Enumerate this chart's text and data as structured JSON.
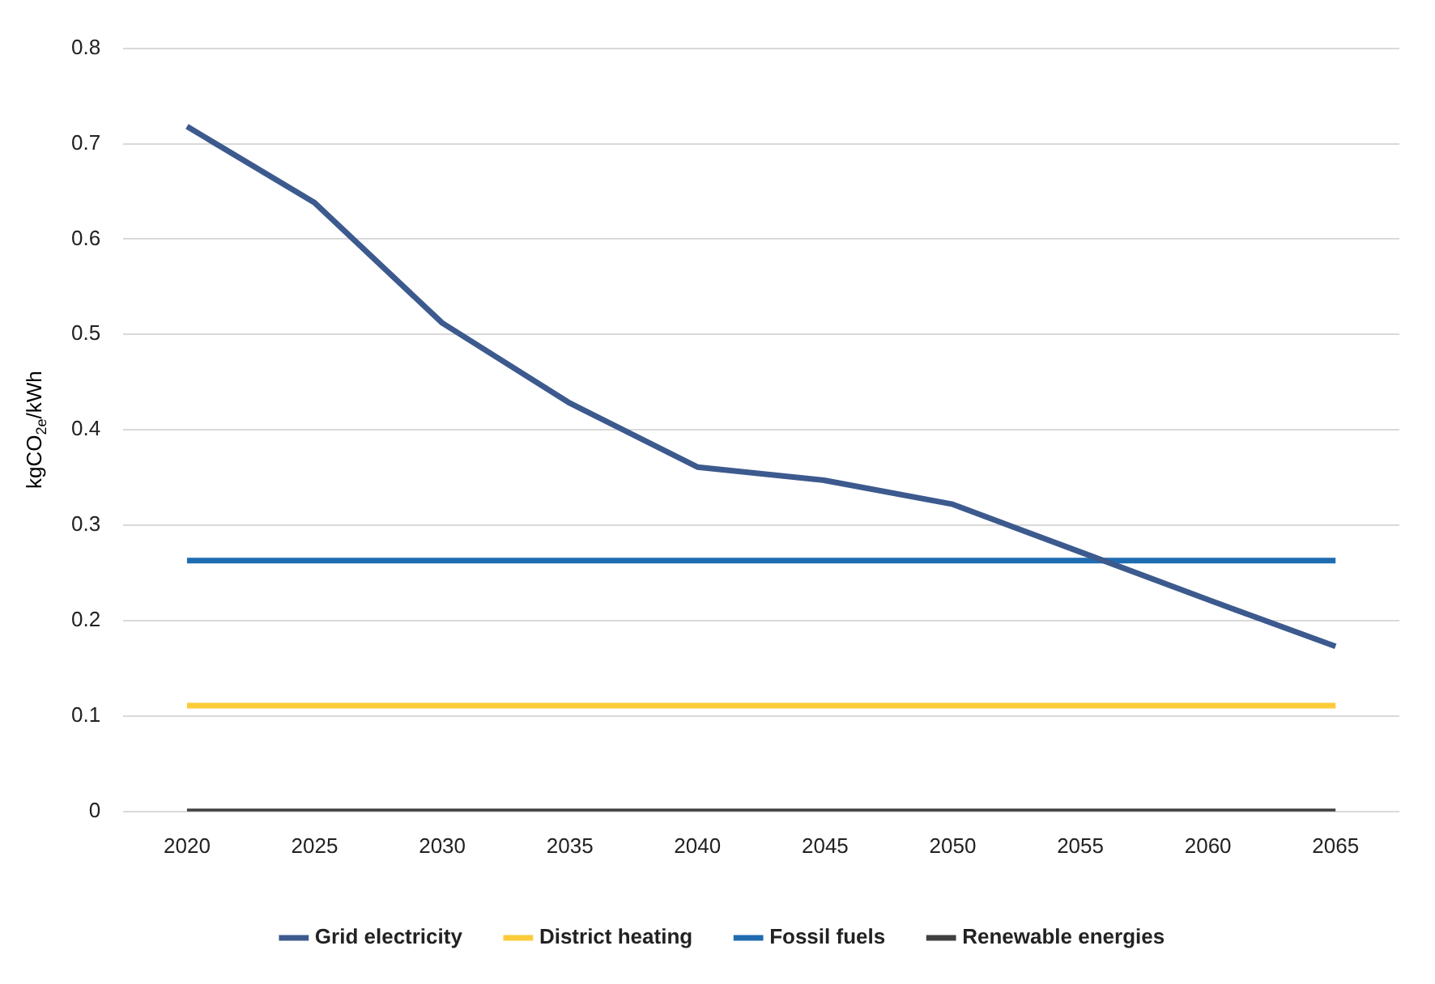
{
  "chart_data": {
    "type": "line",
    "ylabel": "kgCO$_{2e}$/kWh",
    "categories": [
      "2020",
      "2025",
      "2030",
      "2035",
      "2040",
      "2045",
      "2050",
      "2055",
      "2060",
      "2065"
    ],
    "series": [
      {
        "name": "Grid electricity",
        "color": "#3c5a8e",
        "values": [
          0.718,
          0.638,
          0.512,
          0.428,
          0.361,
          0.347,
          0.322,
          0.272,
          0.222,
          0.173
        ]
      },
      {
        "name": "District heating",
        "color": "#fbcb3a",
        "values": [
          0.111,
          0.111,
          0.111,
          0.111,
          0.111,
          0.111,
          0.111,
          0.111,
          0.111,
          0.111
        ]
      },
      {
        "name": "Fossil fuels",
        "color": "#1f6cb1",
        "values": [
          0.263,
          0.263,
          0.263,
          0.263,
          0.263,
          0.263,
          0.263,
          0.263,
          0.263,
          0.263
        ]
      },
      {
        "name": "Renewable energies",
        "color": "#404040",
        "values": [
          0,
          0,
          0,
          0,
          0,
          0,
          0,
          0,
          0,
          0
        ]
      }
    ],
    "ylim": [
      0,
      0.8
    ],
    "yticks": [
      0,
      0.1,
      0.2,
      0.3,
      0.4,
      0.5,
      0.6,
      0.7,
      0.8
    ],
    "grid": "y",
    "legend": "bottom",
    "marker": "none",
    "line_style": "solid"
  }
}
